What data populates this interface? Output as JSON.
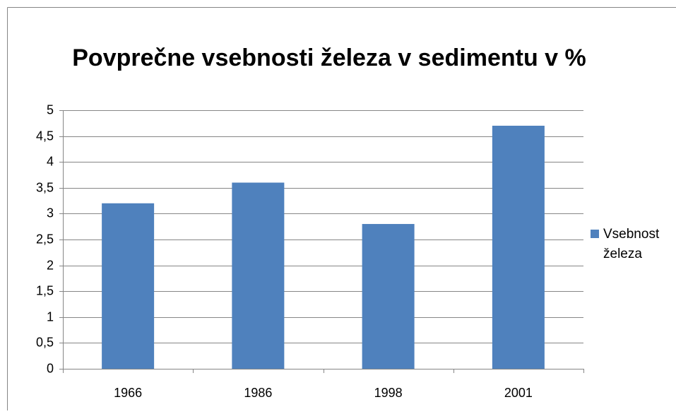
{
  "chart_data": {
    "type": "bar",
    "title": "Povprečne vsebnosti železa v sedimentu v %",
    "categories": [
      "1966",
      "1986",
      "1998",
      "2001"
    ],
    "series": [
      {
        "name": "Vsebnost železa",
        "color": "#4f81bd",
        "values": [
          3.2,
          3.6,
          2.8,
          4.7
        ]
      }
    ],
    "ylim": [
      0,
      5
    ],
    "yticks": [
      0,
      {
        "value": 0.5,
        "label": "0,5"
      },
      1,
      {
        "value": 1.5,
        "label": "1,5"
      },
      2,
      {
        "value": 2.5,
        "label": "2,5"
      },
      3,
      {
        "value": 3.5,
        "label": "3,5"
      },
      4,
      {
        "value": 4.5,
        "label": "4,5"
      },
      5
    ],
    "grid": true,
    "legend": "right"
  }
}
